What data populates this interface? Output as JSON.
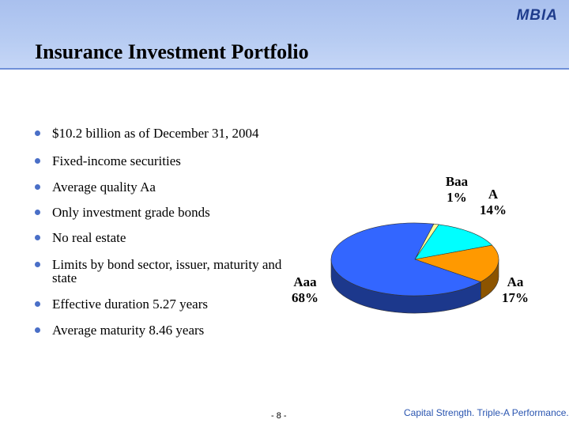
{
  "header": {
    "logo": "MBIA",
    "title": "Insurance Investment Portfolio"
  },
  "bullets": [
    "$10.2 billion as of December 31, 2004",
    "Fixed-income securities",
    "Average quality Aa",
    "Only investment grade bonds",
    "No real estate",
    "Limits by bond sector, issuer, maturity and state",
    "Effective duration 5.27 years",
    "Average maturity 8.46 years"
  ],
  "chart_data": {
    "type": "pie",
    "title": "",
    "slices": [
      {
        "name": "Baa",
        "value": 1,
        "label": "1%",
        "color": "#ffff99"
      },
      {
        "name": "A",
        "value": 14,
        "label": "14%",
        "color": "#00ffff"
      },
      {
        "name": "Aa",
        "value": 17,
        "label": "17%",
        "color": "#ff9900"
      },
      {
        "name": "Aaa",
        "value": 68,
        "label": "68%",
        "color": "#3366ff"
      }
    ]
  },
  "footer": {
    "page": "- 8 -",
    "tagline": "Capital Strength. Triple-A Performance."
  }
}
